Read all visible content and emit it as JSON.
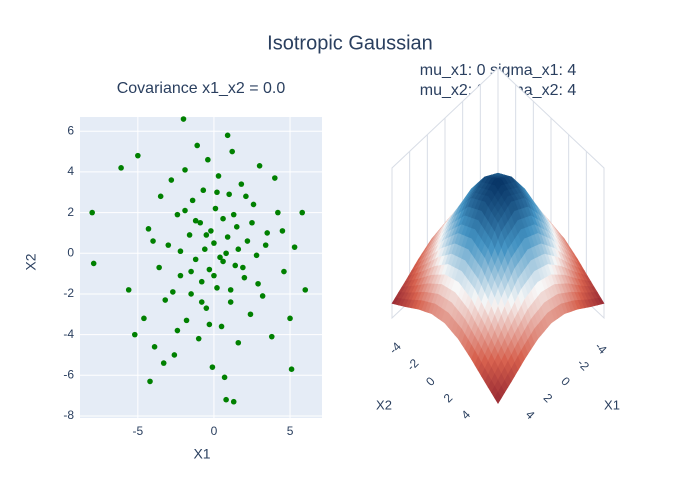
{
  "title": "Isotropic Gaussian",
  "chart_data": [
    {
      "type": "scatter",
      "title": "Covariance x1_x2 = 0.0",
      "xlabel": "X1",
      "ylabel": "X2",
      "color": "#008000",
      "grid": true,
      "xlim": [
        -8.8,
        7.1
      ],
      "ylim": [
        -8.1,
        6.7
      ],
      "xticks": [
        -5,
        0,
        5
      ],
      "yticks": [
        -8,
        -6,
        -4,
        -2,
        0,
        2,
        4,
        6
      ],
      "x": [
        -8.0,
        -7.9,
        -6.1,
        -5.0,
        -5.6,
        -4.6,
        -4.3,
        -3.9,
        -3.5,
        -3.2,
        -3.0,
        -2.8,
        -2.6,
        -2.4,
        -2.2,
        -2.0,
        -1.9,
        -1.8,
        -1.6,
        -1.5,
        -1.4,
        -1.2,
        -1.1,
        -1.0,
        -0.9,
        -0.8,
        -0.7,
        -0.6,
        -0.5,
        -0.4,
        -0.3,
        -0.2,
        -0.1,
        0.0,
        0.1,
        0.2,
        0.3,
        0.4,
        0.5,
        0.6,
        0.7,
        0.8,
        0.9,
        1.0,
        1.1,
        1.2,
        1.3,
        1.4,
        1.5,
        1.6,
        1.8,
        2.0,
        2.2,
        2.4,
        2.6,
        2.8,
        3.0,
        3.2,
        3.5,
        3.8,
        4.2,
        4.6,
        5.0,
        5.3,
        5.8,
        6.0,
        -2.2,
        0.8,
        1.3,
        -1.5,
        2.5,
        -3.6,
        3.4,
        -0.5,
        0.6,
        -1.2,
        1.9,
        -2.7,
        2.9,
        -4.0,
        4.5,
        0.2,
        -0.8,
        1.6,
        -1.9,
        0.0,
        -0.3,
        1.1,
        -2.4,
        2.1,
        4.0,
        -3.3,
        5.1,
        -4.2,
        0.9,
        -5.2
      ],
      "y": [
        2.0,
        -0.5,
        4.2,
        4.8,
        -1.8,
        -3.2,
        1.2,
        -4.6,
        2.8,
        -2.3,
        0.4,
        3.6,
        -5.0,
        1.9,
        -1.1,
        6.6,
        4.1,
        -3.3,
        0.9,
        -2.0,
        2.6,
        -0.3,
        5.3,
        -4.2,
        1.5,
        -1.4,
        3.1,
        0.2,
        -2.7,
        4.6,
        -0.8,
        1.1,
        -5.6,
        0.5,
        2.2,
        -1.7,
        3.8,
        -0.2,
        -3.6,
        1.7,
        -6.1,
        -7.2,
        0.8,
        2.9,
        -2.4,
        5.0,
        -7.3,
        -0.6,
        1.3,
        -4.4,
        3.4,
        -1.2,
        0.6,
        -3.0,
        2.4,
        -0.1,
        4.3,
        -2.1,
        1.0,
        -4.1,
        2.0,
        -0.9,
        -3.2,
        0.3,
        2.0,
        -1.8,
        0.1,
        0.0,
        1.9,
        -0.9,
        1.5,
        -0.7,
        0.4,
        0.9,
        -0.4,
        1.6,
        -0.7,
        -1.9,
        -1.5,
        0.6,
        1.1,
        3.0,
        -2.4,
        0.2,
        2.1,
        -1.1,
        -3.5,
        -1.8,
        -3.8,
        2.8,
        3.7,
        -5.4,
        -5.7,
        -6.3,
        5.8,
        -4.0
      ]
    },
    {
      "type": "surface",
      "title": [
        "mu_x1: 0 sigma_x1: 4",
        "mu_x2: 0 sigma_x2: 4"
      ],
      "xlabel": "X1",
      "ylabel": "X2",
      "xlim": [
        -6,
        6
      ],
      "ylim": [
        -6,
        6
      ],
      "xticks": [
        -4,
        -2,
        0,
        2,
        4
      ],
      "yticks": [
        -4,
        -2,
        0,
        2,
        4
      ],
      "colorscale": [
        "#67001f",
        "#d6604d",
        "#f7f7f7",
        "#4393c3",
        "#053061"
      ],
      "x": [
        -6,
        -4.5,
        -3,
        -1.5,
        0,
        1.5,
        3,
        4.5,
        6
      ],
      "y": [
        -6,
        -4.5,
        -3,
        -1.5,
        0,
        1.5,
        3,
        4.5,
        6
      ],
      "z": [
        [
          0.00105,
          0.00172,
          0.00244,
          0.00301,
          0.00323,
          0.00301,
          0.00244,
          0.00172,
          0.00105
        ],
        [
          0.00172,
          0.00281,
          0.00399,
          0.00492,
          0.00528,
          0.00492,
          0.00399,
          0.00281,
          0.00172
        ],
        [
          0.00244,
          0.00399,
          0.00567,
          0.007,
          0.00751,
          0.007,
          0.00567,
          0.00399,
          0.00244
        ],
        [
          0.00301,
          0.00492,
          0.007,
          0.00864,
          0.00927,
          0.00864,
          0.007,
          0.00492,
          0.00301
        ],
        [
          0.00323,
          0.00528,
          0.00751,
          0.00927,
          0.00995,
          0.00927,
          0.00751,
          0.00528,
          0.00323
        ],
        [
          0.00301,
          0.00492,
          0.007,
          0.00864,
          0.00927,
          0.00864,
          0.007,
          0.00492,
          0.00301
        ],
        [
          0.00244,
          0.00399,
          0.00567,
          0.007,
          0.00751,
          0.007,
          0.00567,
          0.00399,
          0.00244
        ],
        [
          0.00172,
          0.00281,
          0.00399,
          0.00492,
          0.00528,
          0.00492,
          0.00399,
          0.00281,
          0.00172
        ],
        [
          0.00105,
          0.00172,
          0.00244,
          0.00301,
          0.00323,
          0.00301,
          0.00244,
          0.00172,
          0.00105
        ]
      ]
    }
  ]
}
